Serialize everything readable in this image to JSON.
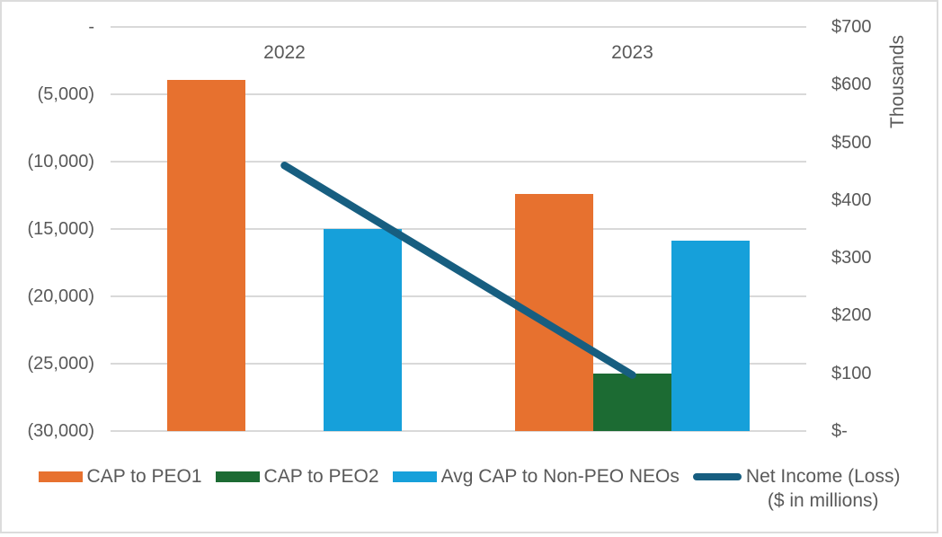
{
  "chart_data": {
    "type": "bar",
    "chart_kind": "combo-bar-line",
    "categories": [
      "2022",
      "2023"
    ],
    "series": [
      {
        "name": "CAP to PEO1",
        "type": "bar",
        "color": "#e7712f",
        "values": [
          608,
          410
        ]
      },
      {
        "name": "CAP to PEO2",
        "type": "bar",
        "color": "#1c6b33",
        "values": [
          null,
          100
        ]
      },
      {
        "name": "Avg CAP to Non-PEO NEOs",
        "type": "bar",
        "color": "#16a0da",
        "values": [
          350,
          330
        ]
      },
      {
        "name": "Net Income (Loss) ($ in millions)",
        "type": "line",
        "color": "#175e80",
        "values": [
          460,
          97
        ]
      }
    ],
    "bar_value_axis": "right",
    "left_axis": {
      "tick_labels": [
        "-",
        "(5,000)",
        "(10,000)",
        "(15,000)",
        "(20,000)",
        "(25,000)",
        "(30,000)"
      ]
    },
    "right_axis": {
      "title": "Thousands",
      "tick_labels": [
        "$700",
        "$600",
        "$500",
        "$400",
        "$300",
        "$200",
        "$100",
        "$-"
      ],
      "min": 0,
      "max": 700
    },
    "grid": true,
    "legend_position": "bottom",
    "title": ""
  },
  "legend": {
    "items": [
      {
        "label": "CAP to PEO1",
        "swatch": "bar",
        "color": "#e7712f"
      },
      {
        "label": "CAP to PEO2",
        "swatch": "bar",
        "color": "#1c6b33"
      },
      {
        "label": "Avg CAP to Non-PEO NEOs",
        "swatch": "bar",
        "color": "#16a0da"
      },
      {
        "label": "Net Income (Loss)",
        "label_line2": "($ in millions)",
        "swatch": "line",
        "color": "#175e80"
      }
    ]
  },
  "colors": {
    "text": "#595959",
    "gridline": "#d9d9d9",
    "frame_border": "#dcdcdc",
    "background": "#ffffff"
  }
}
